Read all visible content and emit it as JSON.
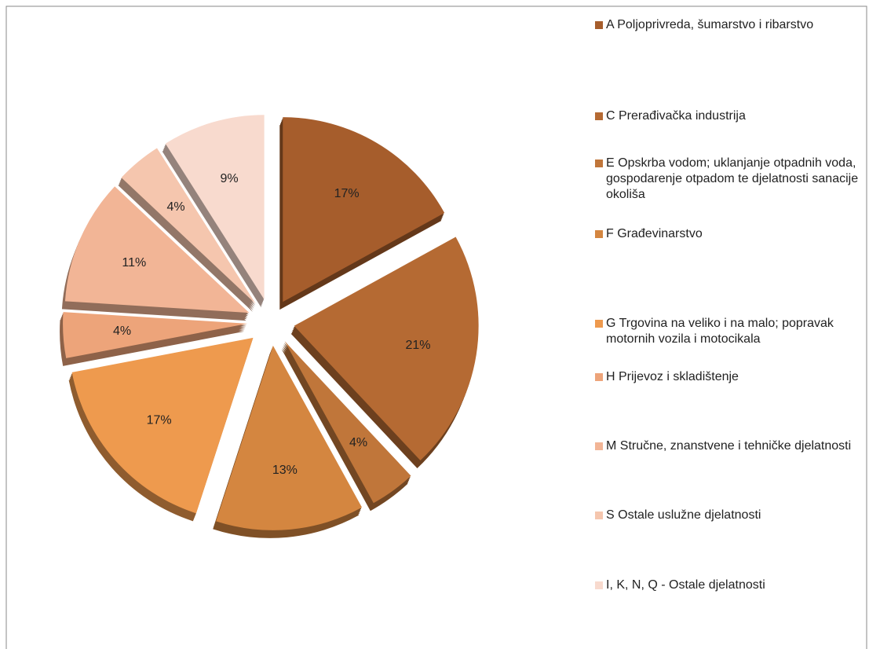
{
  "chart_data": {
    "type": "pie",
    "categories": [
      "A  Poljoprivreda, šumarstvo i ribarstvo",
      "C  Prerađivačka industrija",
      "E  Opskrba vodom; uklanjanje otpadnih voda, gospodarenje otpadom te djelatnosti sanacije okoliša",
      "F  Građevinarstvo",
      "G  Trgovina na veliko i na malo; popravak motornih vozila i motocikala",
      "H  Prijevoz i skladištenje",
      "M  Stručne, znanstvene i tehničke djelatnosti",
      "S  Ostale uslužne djelatnosti",
      "I, K, N, Q - Ostale djelatnosti"
    ],
    "values": [
      17,
      21,
      4,
      13,
      17,
      4,
      11,
      4,
      9
    ],
    "value_labels": [
      "17%",
      "21%",
      "4%",
      "13%",
      "17%",
      "4%",
      "11%",
      "4%",
      "9%"
    ],
    "colors": [
      "#a65d2c",
      "#b56a33",
      "#c0763a",
      "#d48640",
      "#ee9a4e",
      "#eda47a",
      "#f2b596",
      "#f5c6ae",
      "#f8dace"
    ],
    "legend": "right"
  }
}
